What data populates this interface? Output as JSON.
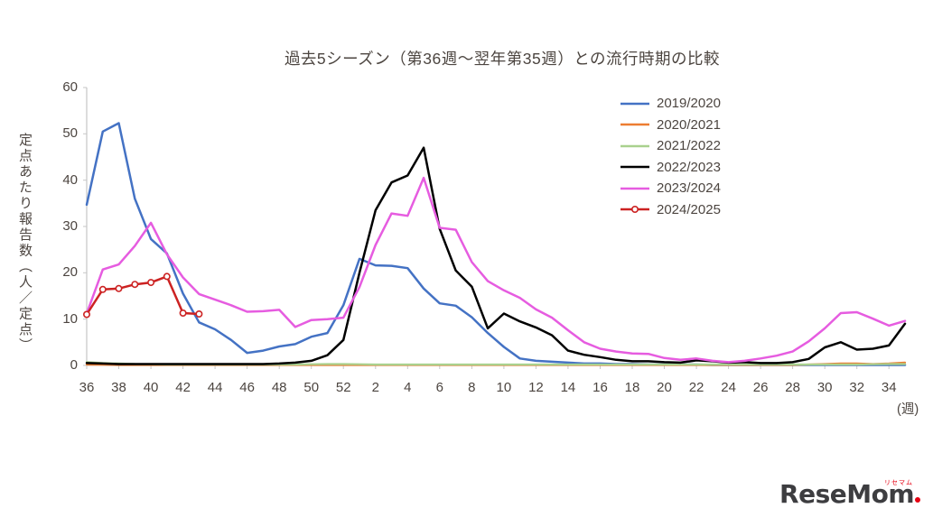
{
  "title": "過去5シーズン（第36週～翌年第35週）との流行時期の比較",
  "y_axis_label": "定点あたり報告数（人／定点）",
  "x_unit_label": "(週)",
  "logo": {
    "text": "ReseMom",
    "sub": "リセマム"
  },
  "chart_data": {
    "type": "line",
    "title": "過去5シーズン（第36週～翌年第35週）との流行時期の比較",
    "xlabel": "週",
    "ylabel": "定点あたり報告数（人／定点）",
    "ylim": [
      0,
      60
    ],
    "y_ticks": [
      0,
      10,
      20,
      30,
      40,
      50,
      60
    ],
    "grid": false,
    "legend_position": "upper right",
    "axis_color": "#c6c6c6",
    "x_categories": [
      "36",
      "37",
      "38",
      "39",
      "40",
      "41",
      "42",
      "43",
      "44",
      "45",
      "46",
      "47",
      "48",
      "49",
      "50",
      "51",
      "52",
      "1",
      "2",
      "3",
      "4",
      "5",
      "6",
      "7",
      "8",
      "9",
      "10",
      "11",
      "12",
      "13",
      "14",
      "15",
      "16",
      "17",
      "18",
      "19",
      "20",
      "21",
      "22",
      "23",
      "24",
      "25",
      "26",
      "27",
      "28",
      "29",
      "30",
      "31",
      "32",
      "33",
      "34",
      "35"
    ],
    "x_tick_labels": [
      "36",
      "38",
      "40",
      "42",
      "44",
      "46",
      "48",
      "50",
      "52",
      "2",
      "4",
      "6",
      "8",
      "10",
      "12",
      "14",
      "16",
      "18",
      "20",
      "22",
      "24",
      "26",
      "28",
      "30",
      "32",
      "34"
    ],
    "series": [
      {
        "name": "2019/2020",
        "color": "#4472C4",
        "marker": false,
        "values": [
          34.7,
          50.5,
          52.3,
          36.0,
          27.3,
          24.2,
          15.5,
          9.3,
          7.8,
          5.5,
          2.7,
          3.2,
          4.1,
          4.6,
          6.2,
          7.0,
          13.0,
          23.0,
          21.6,
          21.5,
          21.0,
          16.6,
          13.4,
          12.9,
          10.4,
          7.0,
          4.0,
          1.5,
          1.0,
          0.8,
          0.6,
          0.4,
          0.4,
          0.3,
          0.3,
          0.2,
          0.2,
          0.2,
          0.2,
          0.1,
          0.1,
          0.1,
          0.1,
          0.1,
          0.1,
          0.1,
          0.1,
          0.1,
          0.1,
          0.1,
          0.1,
          0.1
        ]
      },
      {
        "name": "2020/2021",
        "color": "#ED7D31",
        "marker": false,
        "values": [
          0.2,
          0.15,
          0.1,
          0.1,
          0.1,
          0.1,
          0.1,
          0.1,
          0.1,
          0.1,
          0.1,
          0.1,
          0.1,
          0.1,
          0.1,
          0.1,
          0.1,
          0.1,
          0.1,
          0.1,
          0.1,
          0.1,
          0.1,
          0.1,
          0.1,
          0.1,
          0.1,
          0.1,
          0.1,
          0.1,
          0.1,
          0.1,
          0.1,
          0.1,
          0.1,
          0.1,
          0.1,
          0.1,
          0.1,
          0.1,
          0.1,
          0.1,
          0.1,
          0.1,
          0.1,
          0.2,
          0.3,
          0.4,
          0.4,
          0.3,
          0.4,
          0.6
        ]
      },
      {
        "name": "2021/2022",
        "color": "#A9D18E",
        "marker": false,
        "values": [
          0.7,
          0.5,
          0.4,
          0.3,
          0.25,
          0.2,
          0.2,
          0.2,
          0.2,
          0.2,
          0.2,
          0.2,
          0.2,
          0.2,
          0.25,
          0.3,
          0.3,
          0.25,
          0.2,
          0.2,
          0.2,
          0.2,
          0.2,
          0.2,
          0.2,
          0.2,
          0.2,
          0.2,
          0.2,
          0.2,
          0.2,
          0.2,
          0.2,
          0.2,
          0.2,
          0.2,
          0.2,
          0.2,
          0.2,
          0.2,
          0.2,
          0.2,
          0.2,
          0.2,
          0.2,
          0.2,
          0.2,
          0.2,
          0.2,
          0.25,
          0.3,
          0.3
        ]
      },
      {
        "name": "2022/2023",
        "color": "#000000",
        "marker": false,
        "values": [
          0.5,
          0.4,
          0.3,
          0.3,
          0.3,
          0.3,
          0.3,
          0.3,
          0.3,
          0.3,
          0.3,
          0.3,
          0.4,
          0.6,
          1.0,
          2.2,
          5.5,
          20.0,
          33.5,
          39.5,
          41.0,
          47.0,
          29.5,
          20.5,
          17.0,
          8.0,
          11.2,
          9.5,
          8.2,
          6.5,
          3.2,
          2.3,
          1.8,
          1.2,
          0.9,
          0.9,
          0.7,
          0.6,
          1.1,
          0.9,
          0.6,
          0.7,
          0.5,
          0.5,
          0.7,
          1.4,
          3.9,
          5.0,
          3.4,
          3.6,
          4.3,
          9.0
        ]
      },
      {
        "name": "2023/2024",
        "color": "#E65CE0",
        "marker": false,
        "values": [
          11.2,
          20.7,
          21.8,
          25.8,
          30.8,
          24.0,
          19.0,
          15.4,
          14.2,
          13.0,
          11.6,
          11.7,
          12.0,
          8.3,
          9.8,
          10.0,
          10.3,
          16.9,
          26.0,
          32.8,
          32.3,
          40.5,
          29.7,
          29.3,
          22.3,
          18.2,
          16.2,
          14.6,
          12.1,
          10.3,
          7.6,
          5.0,
          3.6,
          3.0,
          2.6,
          2.5,
          1.6,
          1.2,
          1.5,
          1.0,
          0.7,
          1.0,
          1.5,
          2.1,
          3.0,
          5.2,
          8.0,
          11.3,
          11.5,
          10.1,
          8.6,
          9.6
        ]
      },
      {
        "name": "2024/2025",
        "color": "#CC2222",
        "marker": true,
        "values": [
          11.0,
          16.4,
          16.6,
          17.5,
          17.9,
          19.2,
          11.3,
          11.1,
          null,
          null,
          null,
          null,
          null,
          null,
          null,
          null,
          null,
          null,
          null,
          null,
          null,
          null,
          null,
          null,
          null,
          null,
          null,
          null,
          null,
          null,
          null,
          null,
          null,
          null,
          null,
          null,
          null,
          null,
          null,
          null,
          null,
          null,
          null,
          null,
          null,
          null,
          null,
          null,
          null,
          null,
          null,
          null
        ]
      }
    ]
  }
}
